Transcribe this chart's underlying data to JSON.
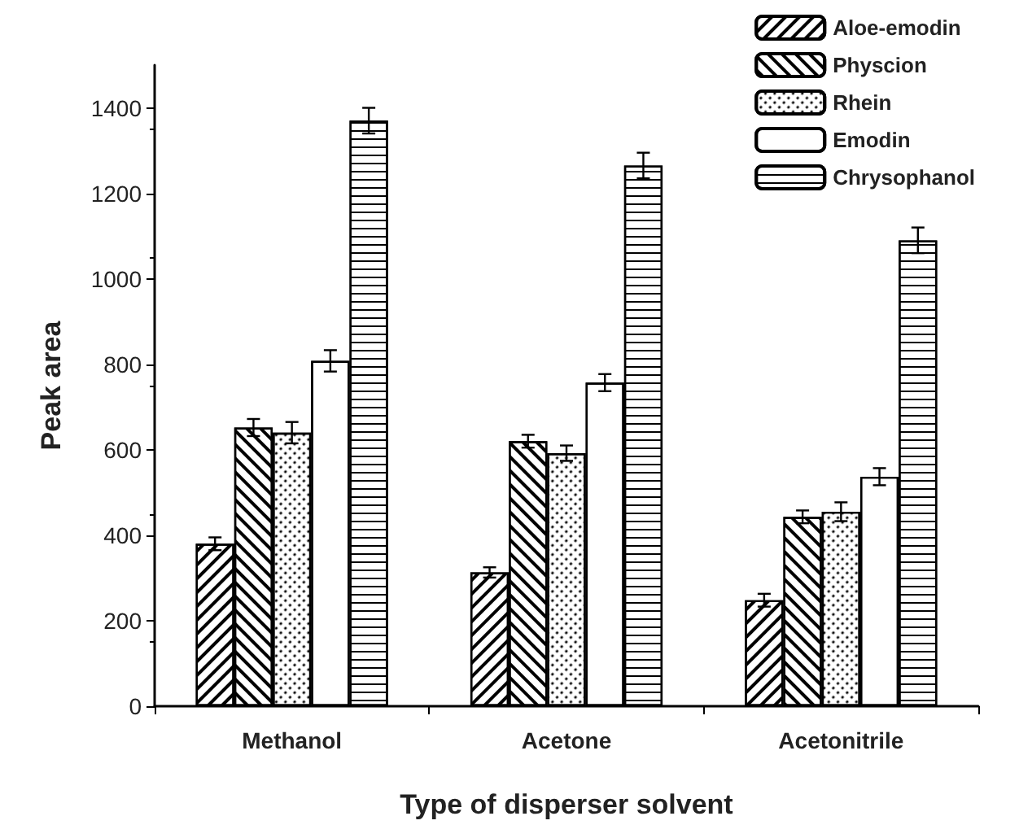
{
  "chart_data": {
    "type": "bar",
    "xlabel": "Type of disperser solvent",
    "ylabel": "Peak area",
    "categories": [
      "Methanol",
      "Acetone",
      "Acetonitrile"
    ],
    "series": [
      {
        "name": "Aloe-emodin",
        "color": "#000000",
        "values": [
          380,
          313,
          248
        ],
        "errors": [
          15,
          12,
          15
        ]
      },
      {
        "name": "Physcion",
        "color": "#000000",
        "values": [
          652,
          620,
          443
        ],
        "errors": [
          20,
          15,
          15
        ]
      },
      {
        "name": "Rhein",
        "color": "#000000",
        "values": [
          640,
          592,
          455
        ],
        "errors": [
          25,
          18,
          22
        ]
      },
      {
        "name": "Emodin",
        "color": "#000000",
        "values": [
          808,
          757,
          537
        ],
        "errors": [
          25,
          20,
          20
        ]
      },
      {
        "name": "Chrysophanol",
        "color": "#000000",
        "values": [
          1370,
          1265,
          1090
        ],
        "errors": [
          30,
          30,
          30
        ]
      }
    ],
    "ylim": [
      0,
      1500
    ],
    "yticks": [
      0,
      200,
      400,
      600,
      800,
      1000,
      1200,
      1400
    ],
    "grid": false,
    "legend": "top right"
  }
}
